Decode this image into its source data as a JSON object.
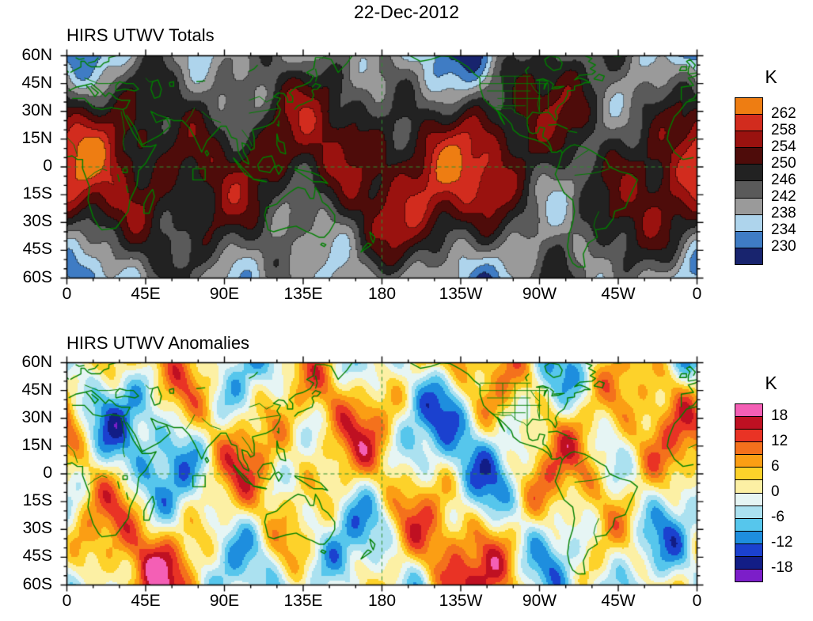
{
  "figure": {
    "date": "22-Dec-2012",
    "background": "#ffffff"
  },
  "axes": {
    "lat_labels": [
      "60N",
      "45N",
      "30N",
      "15N",
      "0",
      "15S",
      "30S",
      "45S",
      "60S"
    ],
    "lat_values": [
      60,
      45,
      30,
      15,
      0,
      -15,
      -30,
      -45,
      -60
    ],
    "lon_labels": [
      "0",
      "45E",
      "90E",
      "135E",
      "180",
      "135W",
      "90W",
      "45W",
      "0"
    ],
    "lon_values": [
      0,
      45,
      90,
      135,
      180,
      225,
      270,
      315,
      360
    ]
  },
  "panels": [
    {
      "title": "HIRS UTWV Totals",
      "colorbar": {
        "units": "K",
        "swatch_colors_top_to_bottom": [
          "#ee7d12",
          "#d22c1e",
          "#9a120f",
          "#4e0c0a",
          "#222222",
          "#5a5a5a",
          "#9a9a9a",
          "#aed4ec",
          "#3f7cc4",
          "#18246e"
        ],
        "boundaries_top_to_bottom": [
          262,
          258,
          254,
          250,
          246,
          242,
          238,
          234,
          230
        ],
        "labeled_boundaries": [
          262,
          258,
          254,
          250,
          246,
          242,
          238,
          234,
          230
        ]
      }
    },
    {
      "title": "HIRS UTWV Anomalies",
      "colorbar": {
        "units": "K",
        "swatch_colors_top_to_bottom": [
          "#f45fb5",
          "#bf1022",
          "#e93325",
          "#f4711c",
          "#fb9e14",
          "#fdd22a",
          "#fcf0a4",
          "#e6f5f4",
          "#abe1f0",
          "#56c6ec",
          "#1e8ede",
          "#1b41cf",
          "#121d86",
          "#7c1ec9"
        ],
        "boundaries_top_to_bottom": [
          18,
          15,
          12,
          9,
          6,
          3,
          0,
          -3,
          -6,
          -9,
          -12,
          -15,
          -18
        ],
        "labeled_boundaries": [
          18,
          12,
          6,
          0,
          -6,
          -12,
          -18
        ]
      }
    }
  ],
  "overlays": {
    "coastline_color": "#008000",
    "reference_lines": "dashed green lines at the equator and the 180 degree meridian"
  },
  "chart_data": [
    {
      "type": "heatmap",
      "title": "HIRS UTWV Totals",
      "subtitle": "22-Dec-2012",
      "units": "K",
      "x_label_ticks": [
        "0",
        "45E",
        "90E",
        "135E",
        "180",
        "135W",
        "90W",
        "45W",
        "0"
      ],
      "y_label_ticks": [
        "60N",
        "45N",
        "30N",
        "15N",
        "0",
        "15S",
        "30S",
        "45S",
        "60S"
      ],
      "lon_range_deg": [
        0,
        360
      ],
      "lat_range_deg": [
        -60,
        60
      ],
      "fill_levels": [
        230,
        234,
        238,
        242,
        246,
        250,
        254,
        258,
        262
      ],
      "fill_colors_low_to_high": [
        "#18246e",
        "#3f7cc4",
        "#aed4ec",
        "#9a9a9a",
        "#5a5a5a",
        "#222222",
        "#4e0c0a",
        "#9a120f",
        "#d22c1e",
        "#ee7d12"
      ],
      "legend_position": "right",
      "grid": false,
      "overlay": "green coastlines, US state borders, rivers; dashed equator and dateline; black contour lines between fill levels"
    },
    {
      "type": "heatmap",
      "title": "HIRS UTWV Anomalies",
      "subtitle": "22-Dec-2012",
      "units": "K",
      "x_label_ticks": [
        "0",
        "45E",
        "90E",
        "135E",
        "180",
        "135W",
        "90W",
        "45W",
        "0"
      ],
      "y_label_ticks": [
        "60N",
        "45N",
        "30N",
        "15N",
        "0",
        "15S",
        "30S",
        "45S",
        "60S"
      ],
      "lon_range_deg": [
        0,
        360
      ],
      "lat_range_deg": [
        -60,
        60
      ],
      "fill_levels": [
        -18,
        -15,
        -12,
        -9,
        -6,
        -3,
        0,
        3,
        6,
        9,
        12,
        15,
        18
      ],
      "fill_colors_low_to_high": [
        "#7c1ec9",
        "#121d86",
        "#1b41cf",
        "#1e8ede",
        "#56c6ec",
        "#abe1f0",
        "#e6f5f4",
        "#fcf0a4",
        "#fdd22a",
        "#fb9e14",
        "#f4711c",
        "#e93325",
        "#bf1022",
        "#f45fb5"
      ],
      "legend_position": "right",
      "grid": false,
      "overlay": "green coastlines, US state borders, rivers; dashed equator and dateline"
    }
  ]
}
